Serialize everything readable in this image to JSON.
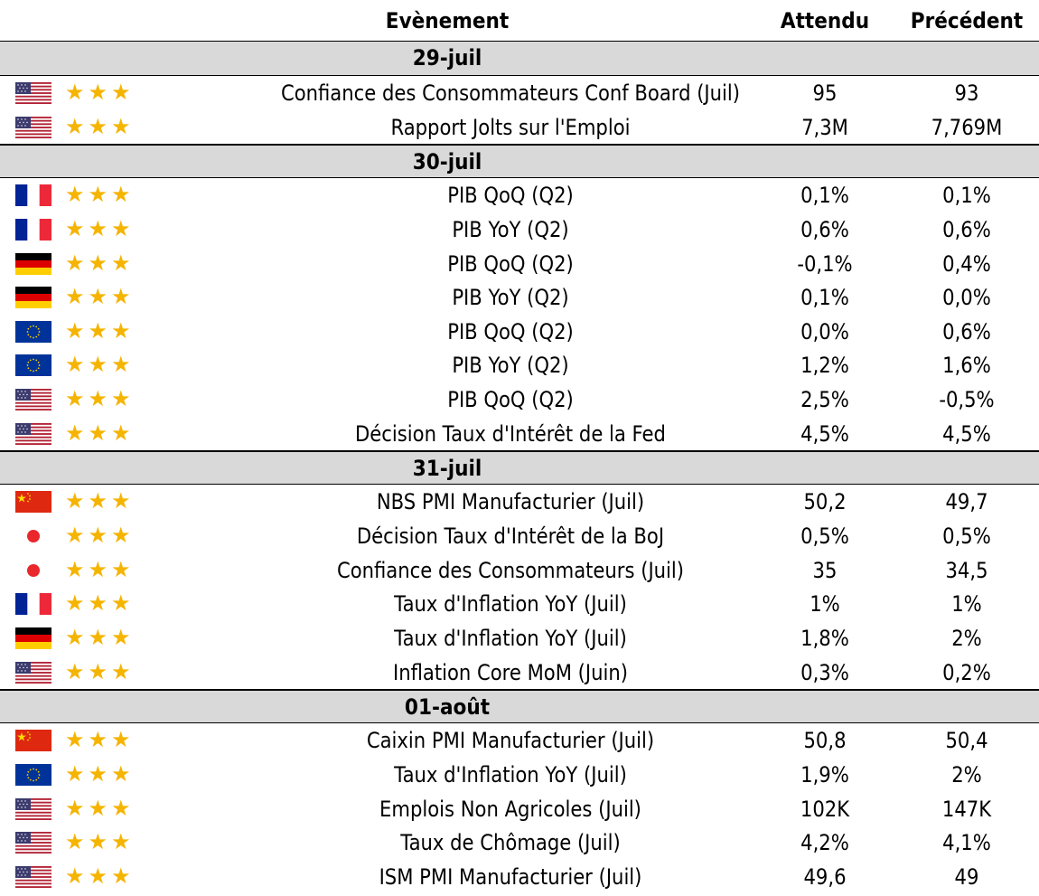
{
  "header": {
    "event_label": "Evènement",
    "expected_label": "Attendu",
    "previous_label": "Précédent"
  },
  "colors": {
    "date_band": "#d9d9d9",
    "star": "#f5b400"
  },
  "rating_stars": "★★★",
  "sections": [
    {
      "date": "29-juil",
      "events": [
        {
          "country": "us",
          "flag_icon": "us-flag-icon",
          "rating": 3,
          "event": "Confiance des Consommateurs Conf Board (Juil)",
          "expected": "95",
          "previous": "93"
        },
        {
          "country": "us",
          "flag_icon": "us-flag-icon",
          "rating": 3,
          "event": "Rapport Jolts sur l'Emploi",
          "expected": "7,3M",
          "previous": "7,769M"
        }
      ]
    },
    {
      "date": "30-juil",
      "events": [
        {
          "country": "fr",
          "flag_icon": "france-flag-icon",
          "rating": 3,
          "event": "PIB QoQ (Q2)",
          "expected": "0,1%",
          "previous": "0,1%"
        },
        {
          "country": "fr",
          "flag_icon": "france-flag-icon",
          "rating": 3,
          "event": "PIB YoY (Q2)",
          "expected": "0,6%",
          "previous": "0,6%"
        },
        {
          "country": "de",
          "flag_icon": "germany-flag-icon",
          "rating": 3,
          "event": "PIB QoQ (Q2)",
          "expected": "-0,1%",
          "previous": "0,4%"
        },
        {
          "country": "de",
          "flag_icon": "germany-flag-icon",
          "rating": 3,
          "event": "PIB YoY (Q2)",
          "expected": "0,1%",
          "previous": "0,0%"
        },
        {
          "country": "eu",
          "flag_icon": "eu-flag-icon",
          "rating": 3,
          "event": "PIB QoQ (Q2)",
          "expected": "0,0%",
          "previous": "0,6%"
        },
        {
          "country": "eu",
          "flag_icon": "eu-flag-icon",
          "rating": 3,
          "event": "PIB YoY (Q2)",
          "expected": "1,2%",
          "previous": "1,6%"
        },
        {
          "country": "us",
          "flag_icon": "us-flag-icon",
          "rating": 3,
          "event": "PIB QoQ (Q2)",
          "expected": "2,5%",
          "previous": "-0,5%"
        },
        {
          "country": "us",
          "flag_icon": "us-flag-icon",
          "rating": 3,
          "event": "Décision Taux d'Intérêt de la Fed",
          "expected": "4,5%",
          "previous": "4,5%"
        }
      ]
    },
    {
      "date": "31-juil",
      "events": [
        {
          "country": "cn",
          "flag_icon": "china-flag-icon",
          "rating": 3,
          "event": "NBS PMI Manufacturier (Juil)",
          "expected": "50,2",
          "previous": "49,7"
        },
        {
          "country": "jp",
          "flag_icon": "japan-flag-icon",
          "rating": 3,
          "event": "Décision Taux d'Intérêt de la BoJ",
          "expected": "0,5%",
          "previous": "0,5%"
        },
        {
          "country": "jp",
          "flag_icon": "japan-flag-icon",
          "rating": 3,
          "event": "Confiance des Consommateurs (Juil)",
          "expected": "35",
          "previous": "34,5"
        },
        {
          "country": "fr",
          "flag_icon": "france-flag-icon",
          "rating": 3,
          "event": "Taux d'Inflation YoY (Juil)",
          "expected": "1%",
          "previous": "1%"
        },
        {
          "country": "de",
          "flag_icon": "germany-flag-icon",
          "rating": 3,
          "event": "Taux d'Inflation YoY (Juil)",
          "expected": "1,8%",
          "previous": "2%"
        },
        {
          "country": "us",
          "flag_icon": "us-flag-icon",
          "rating": 3,
          "event": "Inflation Core MoM (Juin)",
          "expected": "0,3%",
          "previous": "0,2%"
        }
      ]
    },
    {
      "date": "01-août",
      "events": [
        {
          "country": "cn",
          "flag_icon": "china-flag-icon",
          "rating": 3,
          "event": "Caixin PMI Manufacturier (Juil)",
          "expected": "50,8",
          "previous": "50,4"
        },
        {
          "country": "eu",
          "flag_icon": "eu-flag-icon",
          "rating": 3,
          "event": "Taux d'Inflation YoY (Juil)",
          "expected": "1,9%",
          "previous": "2%"
        },
        {
          "country": "us",
          "flag_icon": "us-flag-icon",
          "rating": 3,
          "event": "Emplois Non Agricoles (Juil)",
          "expected": "102K",
          "previous": "147K"
        },
        {
          "country": "us",
          "flag_icon": "us-flag-icon",
          "rating": 3,
          "event": "Taux de Chômage (Juil)",
          "expected": "4,2%",
          "previous": "4,1%"
        },
        {
          "country": "us",
          "flag_icon": "us-flag-icon",
          "rating": 3,
          "event": "ISM PMI Manufacturier (Juil)",
          "expected": "49,6",
          "previous": "49"
        }
      ]
    }
  ]
}
